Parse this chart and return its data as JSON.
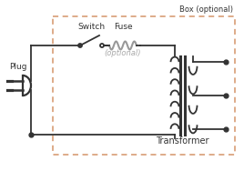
{
  "bg_color": "#ffffff",
  "box_color": "#d4956a",
  "wire_color": "#333333",
  "fuse_color": "#999999",
  "optional_color": "#aaaaaa",
  "label_color": "#333333",
  "title": "Box (optional)",
  "switch_label": "Switch",
  "fuse_label": "Fuse",
  "plug_label": "Plug",
  "transformer_label": "Transformer",
  "optional_label": "(optional)"
}
